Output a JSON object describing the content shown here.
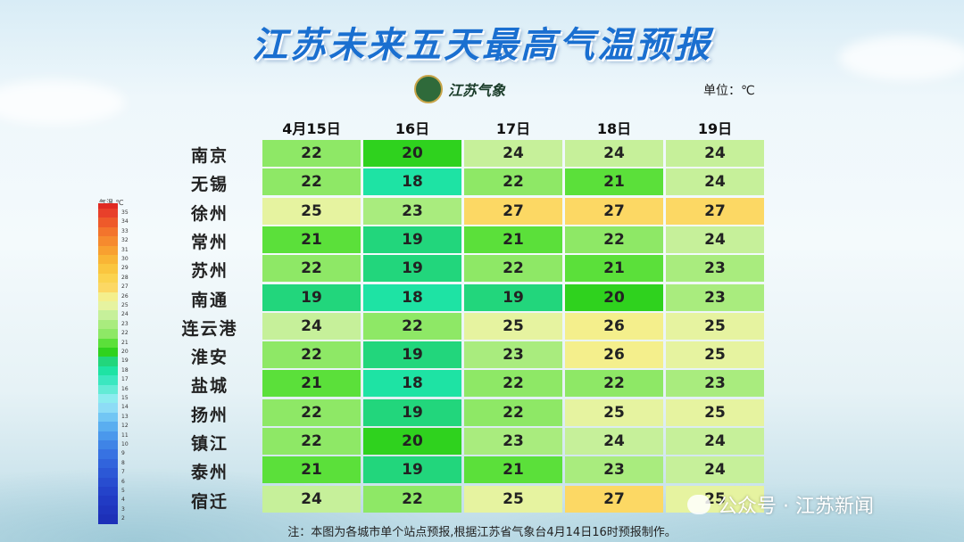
{
  "title": "江苏未来五天最高气温预报",
  "logo": {
    "text": "江苏气象",
    "icon": "meteorological-bureau-emblem"
  },
  "unit": "单位：℃",
  "note": "注：本图为各城市单个站点预报,根据江苏省气象台4月14日16时预报制作。",
  "watermark": "公众号 · 江苏新闻",
  "chart_data": {
    "type": "table",
    "columns": [
      "4月15日",
      "16日",
      "17日",
      "18日",
      "19日"
    ],
    "rows": [
      {
        "city": "南京",
        "values": [
          22,
          20,
          24,
          24,
          24
        ]
      },
      {
        "city": "无锡",
        "values": [
          22,
          18,
          22,
          21,
          24
        ]
      },
      {
        "city": "徐州",
        "values": [
          25,
          23,
          27,
          27,
          27
        ]
      },
      {
        "city": "常州",
        "values": [
          21,
          19,
          21,
          22,
          24
        ]
      },
      {
        "city": "苏州",
        "values": [
          22,
          19,
          22,
          21,
          23
        ]
      },
      {
        "city": "南通",
        "values": [
          19,
          18,
          19,
          20,
          23
        ]
      },
      {
        "city": "连云港",
        "values": [
          24,
          22,
          25,
          26,
          25
        ]
      },
      {
        "city": "淮安",
        "values": [
          22,
          19,
          23,
          26,
          25
        ]
      },
      {
        "city": "盐城",
        "values": [
          21,
          18,
          22,
          22,
          23
        ]
      },
      {
        "city": "扬州",
        "values": [
          22,
          19,
          22,
          25,
          25
        ]
      },
      {
        "city": "镇江",
        "values": [
          22,
          20,
          23,
          24,
          24
        ]
      },
      {
        "city": "泰州",
        "values": [
          21,
          19,
          21,
          23,
          24
        ]
      },
      {
        "city": "宿迁",
        "values": [
          24,
          22,
          25,
          27,
          25
        ]
      }
    ],
    "legend": {
      "title": "气温 ℃",
      "ticks": [
        35,
        34,
        33,
        32,
        31,
        30,
        29,
        28,
        27,
        26,
        25,
        24,
        23,
        22,
        21,
        20,
        19,
        18,
        17,
        16,
        15,
        14,
        13,
        12,
        11,
        10,
        9,
        8,
        7,
        6,
        5,
        4,
        3,
        2
      ],
      "colors": {
        "35": "#e8402a",
        "34": "#ee5a2a",
        "33": "#f3742c",
        "32": "#f68a2e",
        "31": "#f8a030",
        "30": "#f9b535",
        "29": "#fac63f",
        "28": "#fbd34f",
        "27": "#fcd864",
        "26": "#f4ef8c",
        "25": "#e6f3a0",
        "24": "#c6f09a",
        "23": "#a9ec7e",
        "22": "#8ee866",
        "21": "#5be03a",
        "20": "#2fd21e",
        "19": "#22d67c",
        "18": "#1ee3a4",
        "17": "#3be7c0",
        "16": "#63ebd6",
        "15": "#8cecef",
        "14": "#8ddcf6",
        "13": "#72c6f4",
        "12": "#5aaef0",
        "11": "#4a98ec",
        "10": "#3f84e6",
        "9": "#3772e2",
        "8": "#3164dc",
        "7": "#2c58d6",
        "6": "#284dd0",
        "5": "#2443ca",
        "4": "#213bc4",
        "3": "#1f35be",
        "2": "#1d30b8"
      }
    }
  }
}
